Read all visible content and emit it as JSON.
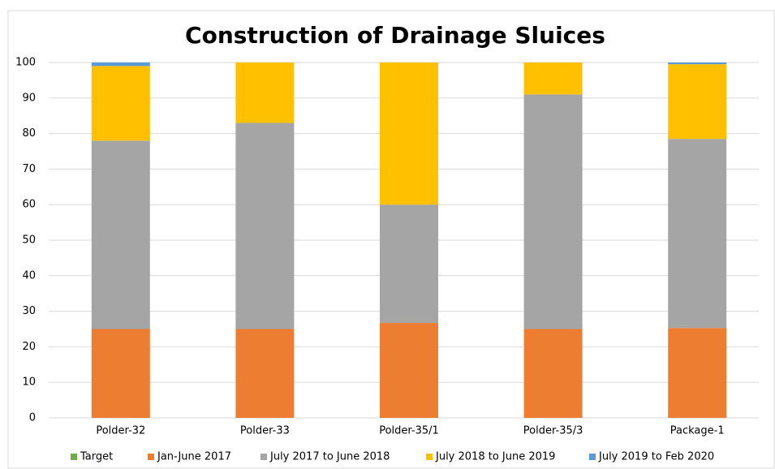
{
  "chart_data": {
    "type": "stacked_bar",
    "title": "Construction of Drainage Sluices",
    "categories": [
      "Polder-32",
      "Polder-33",
      "Polder-35/1",
      "Polder-35/3",
      "Package-1"
    ],
    "series": [
      {
        "name": "Target",
        "color": "#70ad47",
        "values": [
          0,
          0,
          0,
          0,
          0
        ]
      },
      {
        "name": "Jan-June 2017",
        "color": "#ed7d31",
        "values": [
          25,
          25,
          26.7,
          25,
          25.3
        ]
      },
      {
        "name": "July 2017 to June 2018",
        "color": "#a5a5a5",
        "values": [
          53,
          58,
          33.3,
          66,
          53.2
        ]
      },
      {
        "name": "July 2018 to June 2019",
        "color": "#ffc000",
        "values": [
          21,
          17,
          40,
          9,
          21
        ]
      },
      {
        "name": "July 2019 to Feb 2020",
        "color": "#5b9bd5",
        "values": [
          1,
          0,
          0,
          0,
          0.5
        ]
      }
    ],
    "ylim": [
      0,
      100
    ],
    "yticks": [
      0,
      10,
      20,
      30,
      40,
      50,
      60,
      70,
      80,
      90,
      100
    ],
    "grid": true,
    "legend": "bottom"
  }
}
